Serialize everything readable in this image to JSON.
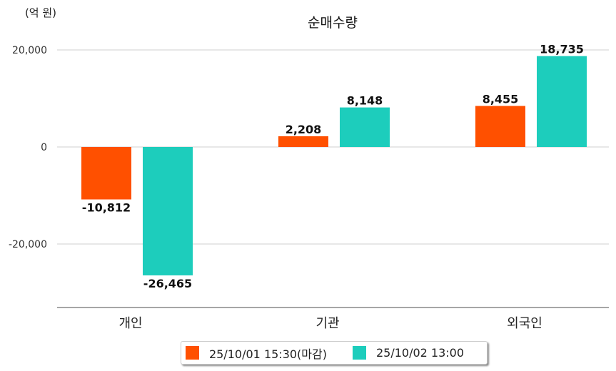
{
  "chart_data": {
    "type": "bar",
    "title": "순매수량",
    "unit_label": "(억 원)",
    "categories": [
      "개인",
      "기관",
      "외국인"
    ],
    "series": [
      {
        "name": "25/10/01 15:30(마감)",
        "color": "#ff5000",
        "values": [
          -10812,
          2208,
          8455
        ],
        "labels": [
          "-10,812",
          "2,208",
          "8,455"
        ]
      },
      {
        "name": "25/10/02 13:00",
        "color": "#1dcdbc",
        "values": [
          -26465,
          8148,
          18735
        ],
        "labels": [
          "-26,465",
          "8,148",
          "18,735"
        ]
      }
    ],
    "yticks": [
      20000,
      0,
      -20000
    ],
    "ytick_labels": [
      "20,000",
      "0",
      "-20,000"
    ],
    "ylim": [
      -33000,
      25000
    ],
    "grid": true,
    "legend": "bottom"
  }
}
